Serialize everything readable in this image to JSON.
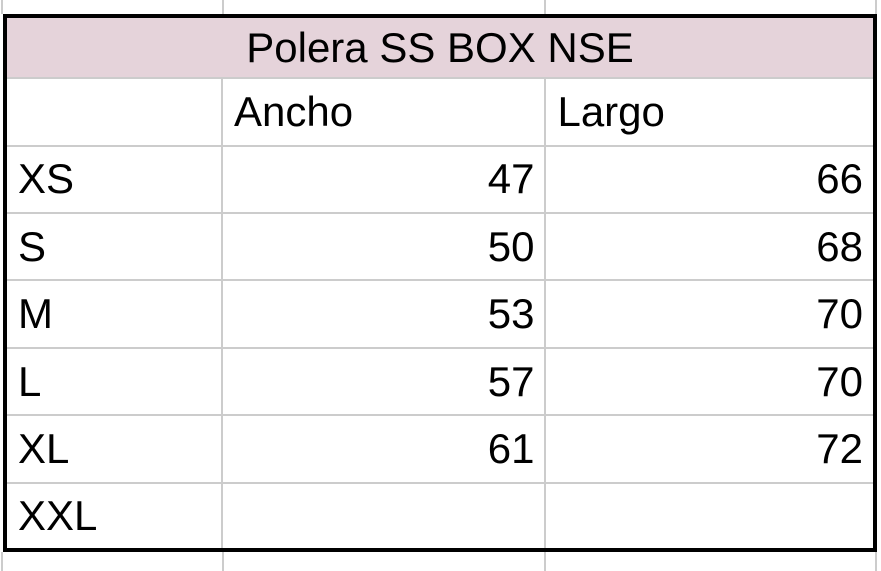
{
  "colors": {
    "page_bg": "#ffffff",
    "title_bg": "#e5d3da",
    "gridline": "#cccccc",
    "border": "#000000",
    "text": "#000000"
  },
  "table": {
    "title": "Polera SS BOX NSE",
    "columns": [
      "",
      "Ancho",
      "Largo"
    ],
    "rows": [
      {
        "size": "XS",
        "ancho": "47",
        "largo": "66"
      },
      {
        "size": "S",
        "ancho": "50",
        "largo": "68"
      },
      {
        "size": "M",
        "ancho": "53",
        "largo": "70"
      },
      {
        "size": "L",
        "ancho": "57",
        "largo": "70"
      },
      {
        "size": "XL",
        "ancho": "61",
        "largo": "72"
      },
      {
        "size": "XXL",
        "ancho": "",
        "largo": ""
      }
    ]
  }
}
